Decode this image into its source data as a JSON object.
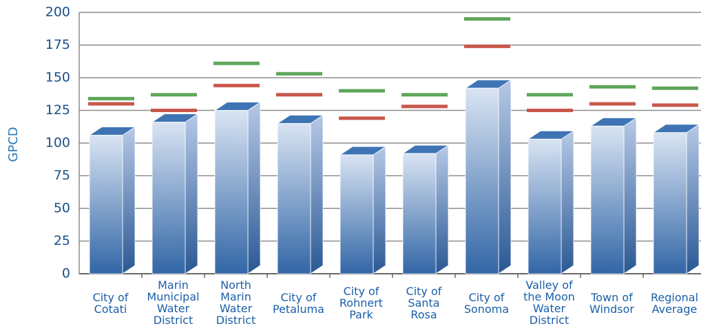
{
  "chart_data": {
    "type": "bar",
    "ylabel": "GPCD",
    "categories": [
      "City of\nCotati",
      "Marin\nMunicipal\nWater\nDistrict",
      "North\nMarin\nWater\nDistrict",
      "City of\nPetaluma",
      "City of\nRohnert\nPark",
      "City of\nSanta\nRosa",
      "City of\nSonoma",
      "Valley of\nthe Moon\nWater\nDistrict",
      "Town of\nWindsor",
      "Regional\nAverage"
    ],
    "series": [
      {
        "type": "bar",
        "color": "#3f74b4",
        "values": [
          106,
          116,
          125,
          115,
          91,
          92,
          142,
          103,
          113,
          108
        ]
      },
      {
        "type": "marker",
        "color": "#5fa55a",
        "values": [
          134,
          137,
          161,
          153,
          140,
          137,
          195,
          137,
          143,
          142
        ]
      },
      {
        "type": "marker",
        "color": "#c9574c",
        "values": [
          130,
          125,
          144,
          137,
          119,
          128,
          174,
          125,
          130,
          129
        ]
      }
    ],
    "ylim": [
      0,
      200
    ],
    "yticks": [
      0,
      25,
      50,
      75,
      100,
      125,
      150,
      175,
      200
    ],
    "grid": true
  }
}
